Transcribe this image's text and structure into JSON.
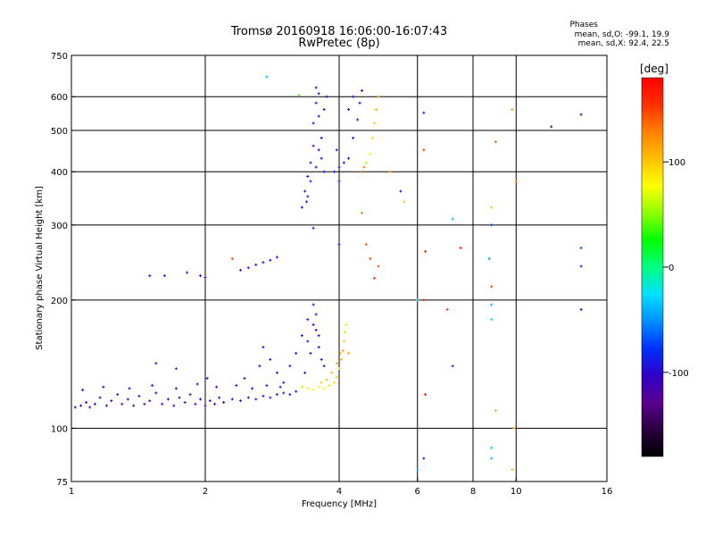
{
  "title": {
    "line1": "Tromsø 20160918 16:06:00-16:07:43",
    "line2": "RwPretec (8p)"
  },
  "phases_box": {
    "heading": "Phases",
    "line_o": "mean, sd,O: -99.1, 19.9",
    "line_x": "mean, sd,X:  92.4, 22.5"
  },
  "colorbar": {
    "label": "[deg]",
    "min": -180,
    "max": 180,
    "ticks": [
      {
        "v": 100,
        "t": "100"
      },
      {
        "v": 0,
        "t": "0"
      },
      {
        "v": -100,
        "t": "-100"
      }
    ],
    "colors": [
      "#000000",
      "#2a0040",
      "#5a0090",
      "#3000c8",
      "#0030ff",
      "#0090ff",
      "#00e0ff",
      "#00ff80",
      "#00ff00",
      "#90ff00",
      "#ffff00",
      "#ffc000",
      "#ff8000",
      "#ff3000",
      "#ff0000"
    ]
  },
  "chart_data": {
    "type": "scatter",
    "xlabel": "Frequency [MHz]",
    "ylabel": "Stationary phase Virtual Height [km]",
    "x_scale": "log",
    "y_scale": "log",
    "xlim": [
      1,
      16
    ],
    "ylim": [
      75,
      750
    ],
    "x_ticks": [
      {
        "v": 1,
        "t": "1"
      },
      {
        "v": 2,
        "t": "2"
      },
      {
        "v": 4,
        "t": "4"
      },
      {
        "v": 6,
        "t": "6"
      },
      {
        "v": 8,
        "t": "8"
      },
      {
        "v": 10,
        "t": "10"
      },
      {
        "v": 16,
        "t": "16"
      }
    ],
    "y_ticks": [
      {
        "v": 75,
        "t": "75"
      },
      {
        "v": 100,
        "t": "100"
      },
      {
        "v": 200,
        "t": "200"
      },
      {
        "v": 300,
        "t": "300"
      },
      {
        "v": 400,
        "t": "400"
      },
      {
        "v": 500,
        "t": "500"
      },
      {
        "v": 600,
        "t": "600"
      },
      {
        "v": 750,
        "t": "750"
      }
    ],
    "grid_x": [
      2,
      4,
      6,
      8,
      10
    ],
    "grid_y": [
      100,
      200,
      300,
      400,
      500,
      600
    ],
    "grid": true,
    "points": [
      {
        "f": 1.02,
        "h": 112,
        "p": -128
      },
      {
        "f": 1.05,
        "h": 113,
        "p": -125
      },
      {
        "f": 1.08,
        "h": 115,
        "p": -120
      },
      {
        "f": 1.1,
        "h": 112,
        "p": -130
      },
      {
        "f": 1.13,
        "h": 114,
        "p": -118
      },
      {
        "f": 1.16,
        "h": 118,
        "p": -115
      },
      {
        "f": 1.2,
        "h": 113,
        "p": -126
      },
      {
        "f": 1.23,
        "h": 116,
        "p": -122
      },
      {
        "f": 1.27,
        "h": 120,
        "p": -112
      },
      {
        "f": 1.3,
        "h": 114,
        "p": -128
      },
      {
        "f": 1.34,
        "h": 117,
        "p": -119
      },
      {
        "f": 1.38,
        "h": 113,
        "p": -124
      },
      {
        "f": 1.42,
        "h": 119,
        "p": -116
      },
      {
        "f": 1.46,
        "h": 114,
        "p": -127
      },
      {
        "f": 1.5,
        "h": 116,
        "p": -121
      },
      {
        "f": 1.55,
        "h": 121,
        "p": -110
      },
      {
        "f": 1.6,
        "h": 114,
        "p": -125
      },
      {
        "f": 1.65,
        "h": 117,
        "p": -118
      },
      {
        "f": 1.7,
        "h": 113,
        "p": -129
      },
      {
        "f": 1.75,
        "h": 118,
        "p": -114
      },
      {
        "f": 1.8,
        "h": 115,
        "p": -122
      },
      {
        "f": 1.85,
        "h": 120,
        "p": -111
      },
      {
        "f": 1.9,
        "h": 114,
        "p": -126
      },
      {
        "f": 1.95,
        "h": 117,
        "p": -117
      },
      {
        "f": 2.0,
        "h": 113,
        "p": -124
      },
      {
        "f": 2.05,
        "h": 116,
        "p": -119
      },
      {
        "f": 2.1,
        "h": 114,
        "p": -128
      },
      {
        "f": 2.15,
        "h": 118,
        "p": -113
      },
      {
        "f": 2.2,
        "h": 115,
        "p": -115
      },
      {
        "f": 2.3,
        "h": 117,
        "p": -108
      },
      {
        "f": 2.4,
        "h": 116,
        "p": -100
      },
      {
        "f": 2.5,
        "h": 118,
        "p": -95
      },
      {
        "f": 2.6,
        "h": 117,
        "p": -90
      },
      {
        "f": 2.7,
        "h": 119,
        "p": -88
      },
      {
        "f": 2.8,
        "h": 118,
        "p": -85
      },
      {
        "f": 2.9,
        "h": 120,
        "p": -86
      },
      {
        "f": 3.0,
        "h": 121,
        "p": -90
      },
      {
        "f": 3.1,
        "h": 120,
        "p": -95
      },
      {
        "f": 3.2,
        "h": 122,
        "p": -100
      },
      {
        "f": 1.06,
        "h": 123,
        "p": -120
      },
      {
        "f": 1.18,
        "h": 125,
        "p": -110
      },
      {
        "f": 1.35,
        "h": 124,
        "p": -118
      },
      {
        "f": 1.52,
        "h": 126,
        "p": -112
      },
      {
        "f": 1.72,
        "h": 124,
        "p": -115
      },
      {
        "f": 1.92,
        "h": 127,
        "p": -108
      },
      {
        "f": 2.12,
        "h": 125,
        "p": -110
      },
      {
        "f": 2.35,
        "h": 126,
        "p": -102
      },
      {
        "f": 2.55,
        "h": 124,
        "p": -98
      },
      {
        "f": 2.75,
        "h": 126,
        "p": -92
      },
      {
        "f": 2.95,
        "h": 125,
        "p": -94
      },
      {
        "f": 2.45,
        "h": 131,
        "p": -105
      },
      {
        "f": 1.55,
        "h": 142,
        "p": -90
      },
      {
        "f": 1.72,
        "h": 138,
        "p": -82
      },
      {
        "f": 2.02,
        "h": 131,
        "p": -100
      },
      {
        "f": 2.65,
        "h": 140,
        "p": -105
      },
      {
        "f": 2.7,
        "h": 155,
        "p": -100
      },
      {
        "f": 2.8,
        "h": 145,
        "p": -95
      },
      {
        "f": 2.9,
        "h": 135,
        "p": -100
      },
      {
        "f": 3.0,
        "h": 128,
        "p": -95
      },
      {
        "f": 3.1,
        "h": 140,
        "p": -110
      },
      {
        "f": 3.2,
        "h": 150,
        "p": -105
      },
      {
        "f": 3.3,
        "h": 165,
        "p": -100
      },
      {
        "f": 3.4,
        "h": 180,
        "p": -95
      },
      {
        "f": 3.5,
        "h": 195,
        "p": -100
      },
      {
        "f": 3.55,
        "h": 170,
        "p": -105
      },
      {
        "f": 3.6,
        "h": 155,
        "p": -98
      },
      {
        "f": 3.65,
        "h": 145,
        "p": -100
      },
      {
        "f": 3.4,
        "h": 160,
        "p": -92
      },
      {
        "f": 3.45,
        "h": 150,
        "p": -102
      },
      {
        "f": 3.5,
        "h": 175,
        "p": -108
      },
      {
        "f": 3.55,
        "h": 185,
        "p": -96
      },
      {
        "f": 3.6,
        "h": 165,
        "p": -104
      },
      {
        "f": 3.7,
        "h": 140,
        "p": -99
      },
      {
        "f": 3.35,
        "h": 135,
        "p": -101
      },
      {
        "f": 3.3,
        "h": 125,
        "p": 60
      },
      {
        "f": 3.4,
        "h": 124,
        "p": 70
      },
      {
        "f": 3.5,
        "h": 123,
        "p": 75
      },
      {
        "f": 3.6,
        "h": 125,
        "p": 80
      },
      {
        "f": 3.7,
        "h": 124,
        "p": 85
      },
      {
        "f": 3.8,
        "h": 126,
        "p": 90
      },
      {
        "f": 3.9,
        "h": 128,
        "p": 95
      },
      {
        "f": 3.95,
        "h": 132,
        "p": 100
      },
      {
        "f": 4.0,
        "h": 138,
        "p": 105
      },
      {
        "f": 4.05,
        "h": 145,
        "p": 110
      },
      {
        "f": 4.08,
        "h": 152,
        "p": 115
      },
      {
        "f": 4.1,
        "h": 160,
        "p": 100
      },
      {
        "f": 4.12,
        "h": 168,
        "p": 95
      },
      {
        "f": 4.15,
        "h": 175,
        "p": 90
      },
      {
        "f": 3.85,
        "h": 135,
        "p": 110
      },
      {
        "f": 3.95,
        "h": 142,
        "p": 118
      },
      {
        "f": 4.02,
        "h": 150,
        "p": 120
      },
      {
        "f": 3.75,
        "h": 130,
        "p": 105
      },
      {
        "f": 3.65,
        "h": 128,
        "p": 98
      },
      {
        "f": 4.2,
        "h": 150,
        "p": 110
      },
      {
        "f": 3.3,
        "h": 330,
        "p": -100
      },
      {
        "f": 3.35,
        "h": 360,
        "p": -95
      },
      {
        "f": 3.4,
        "h": 390,
        "p": -100
      },
      {
        "f": 3.45,
        "h": 420,
        "p": -105
      },
      {
        "f": 3.5,
        "h": 460,
        "p": -98
      },
      {
        "f": 3.5,
        "h": 520,
        "p": -102
      },
      {
        "f": 3.55,
        "h": 580,
        "p": -96
      },
      {
        "f": 3.55,
        "h": 630,
        "p": -100
      },
      {
        "f": 3.6,
        "h": 610,
        "p": -105
      },
      {
        "f": 3.6,
        "h": 540,
        "p": -99
      },
      {
        "f": 3.65,
        "h": 480,
        "p": -101
      },
      {
        "f": 3.65,
        "h": 430,
        "p": -94
      },
      {
        "f": 3.7,
        "h": 400,
        "p": -97
      },
      {
        "f": 3.7,
        "h": 560,
        "p": -103
      },
      {
        "f": 3.75,
        "h": 600,
        "p": -100
      },
      {
        "f": 3.4,
        "h": 350,
        "p": -90
      },
      {
        "f": 3.45,
        "h": 380,
        "p": -85
      },
      {
        "f": 3.55,
        "h": 410,
        "p": -92
      },
      {
        "f": 3.6,
        "h": 450,
        "p": -95
      },
      {
        "f": 3.38,
        "h": 340,
        "p": -99
      },
      {
        "f": 3.9,
        "h": 400,
        "p": -95
      },
      {
        "f": 4.0,
        "h": 410,
        "p": -100
      },
      {
        "f": 4.1,
        "h": 420,
        "p": -98
      },
      {
        "f": 4.2,
        "h": 430,
        "p": -102
      },
      {
        "f": 4.3,
        "h": 480,
        "p": -96
      },
      {
        "f": 4.4,
        "h": 530,
        "p": -100
      },
      {
        "f": 4.45,
        "h": 580,
        "p": -104
      },
      {
        "f": 4.5,
        "h": 620,
        "p": -99
      },
      {
        "f": 4.2,
        "h": 560,
        "p": -95
      },
      {
        "f": 4.3,
        "h": 600,
        "p": -100
      },
      {
        "f": 4.0,
        "h": 380,
        "p": -92
      },
      {
        "f": 3.95,
        "h": 450,
        "p": -100
      },
      {
        "f": 4.6,
        "h": 420,
        "p": 60
      },
      {
        "f": 4.7,
        "h": 440,
        "p": 80
      },
      {
        "f": 4.75,
        "h": 480,
        "p": 95
      },
      {
        "f": 4.8,
        "h": 520,
        "p": 100
      },
      {
        "f": 4.85,
        "h": 560,
        "p": 110
      },
      {
        "f": 4.9,
        "h": 600,
        "p": 120
      },
      {
        "f": 4.55,
        "h": 410,
        "p": 130
      },
      {
        "f": 4.5,
        "h": 400,
        "p": 140
      },
      {
        "f": 1.5,
        "h": 228,
        "p": -100
      },
      {
        "f": 1.62,
        "h": 228,
        "p": -90
      },
      {
        "f": 1.82,
        "h": 232,
        "p": -85
      },
      {
        "f": 1.95,
        "h": 228,
        "p": -100
      },
      {
        "f": 2.0,
        "h": 226,
        "p": -105
      },
      {
        "f": 2.3,
        "h": 250,
        "p": 150
      },
      {
        "f": 2.4,
        "h": 235,
        "p": -95
      },
      {
        "f": 2.5,
        "h": 238,
        "p": -98
      },
      {
        "f": 2.6,
        "h": 242,
        "p": -92
      },
      {
        "f": 2.7,
        "h": 245,
        "p": -100
      },
      {
        "f": 2.8,
        "h": 248,
        "p": -96
      },
      {
        "f": 2.9,
        "h": 252,
        "p": -94
      },
      {
        "f": 2.75,
        "h": 668,
        "p": -40
      },
      {
        "f": 3.25,
        "h": 605,
        "p": 40
      },
      {
        "f": 4.0,
        "h": 270,
        "p": -100
      },
      {
        "f": 3.5,
        "h": 295,
        "p": -90
      },
      {
        "f": 4.5,
        "h": 320,
        "p": 130
      },
      {
        "f": 4.6,
        "h": 270,
        "p": 140
      },
      {
        "f": 4.7,
        "h": 250,
        "p": 150
      },
      {
        "f": 4.8,
        "h": 225,
        "p": 160
      },
      {
        "f": 4.9,
        "h": 240,
        "p": 145
      },
      {
        "f": 5.2,
        "h": 400,
        "p": 120
      },
      {
        "f": 5.5,
        "h": 360,
        "p": -100
      },
      {
        "f": 5.6,
        "h": 340,
        "p": 100
      },
      {
        "f": 6.0,
        "h": 200,
        "p": -20
      },
      {
        "f": 6.2,
        "h": 550,
        "p": -90
      },
      {
        "f": 6.2,
        "h": 450,
        "p": 150
      },
      {
        "f": 6.25,
        "h": 260,
        "p": 160
      },
      {
        "f": 6.2,
        "h": 200,
        "p": 165
      },
      {
        "f": 6.25,
        "h": 120,
        "p": 170
      },
      {
        "f": 6.2,
        "h": 85,
        "p": -100
      },
      {
        "f": 6.0,
        "h": 80,
        "p": -40
      },
      {
        "f": 7.0,
        "h": 190,
        "p": 155
      },
      {
        "f": 7.2,
        "h": 140,
        "p": -80
      },
      {
        "f": 7.5,
        "h": 265,
        "p": 170
      },
      {
        "f": 7.2,
        "h": 310,
        "p": -40
      },
      {
        "f": 8.8,
        "h": 330,
        "p": 100
      },
      {
        "f": 8.8,
        "h": 300,
        "p": -80
      },
      {
        "f": 8.7,
        "h": 250,
        "p": -50
      },
      {
        "f": 8.8,
        "h": 215,
        "p": 150
      },
      {
        "f": 8.8,
        "h": 195,
        "p": -40
      },
      {
        "f": 8.8,
        "h": 180,
        "p": -20
      },
      {
        "f": 8.8,
        "h": 85,
        "p": -40
      },
      {
        "f": 8.8,
        "h": 90,
        "p": -30
      },
      {
        "f": 9.0,
        "h": 110,
        "p": 110
      },
      {
        "f": 9.0,
        "h": 470,
        "p": 140
      },
      {
        "f": 9.8,
        "h": 560,
        "p": 120
      },
      {
        "f": 10.0,
        "h": 380,
        "p": 130
      },
      {
        "f": 9.9,
        "h": 100,
        "p": 110
      },
      {
        "f": 9.8,
        "h": 80,
        "p": 105
      },
      {
        "f": 12.0,
        "h": 510,
        "p": -140
      },
      {
        "f": 14.0,
        "h": 545,
        "p": -110
      },
      {
        "f": 14.0,
        "h": 265,
        "p": -70
      },
      {
        "f": 14.0,
        "h": 240,
        "p": -80
      },
      {
        "f": 14.0,
        "h": 190,
        "p": -100
      }
    ]
  }
}
